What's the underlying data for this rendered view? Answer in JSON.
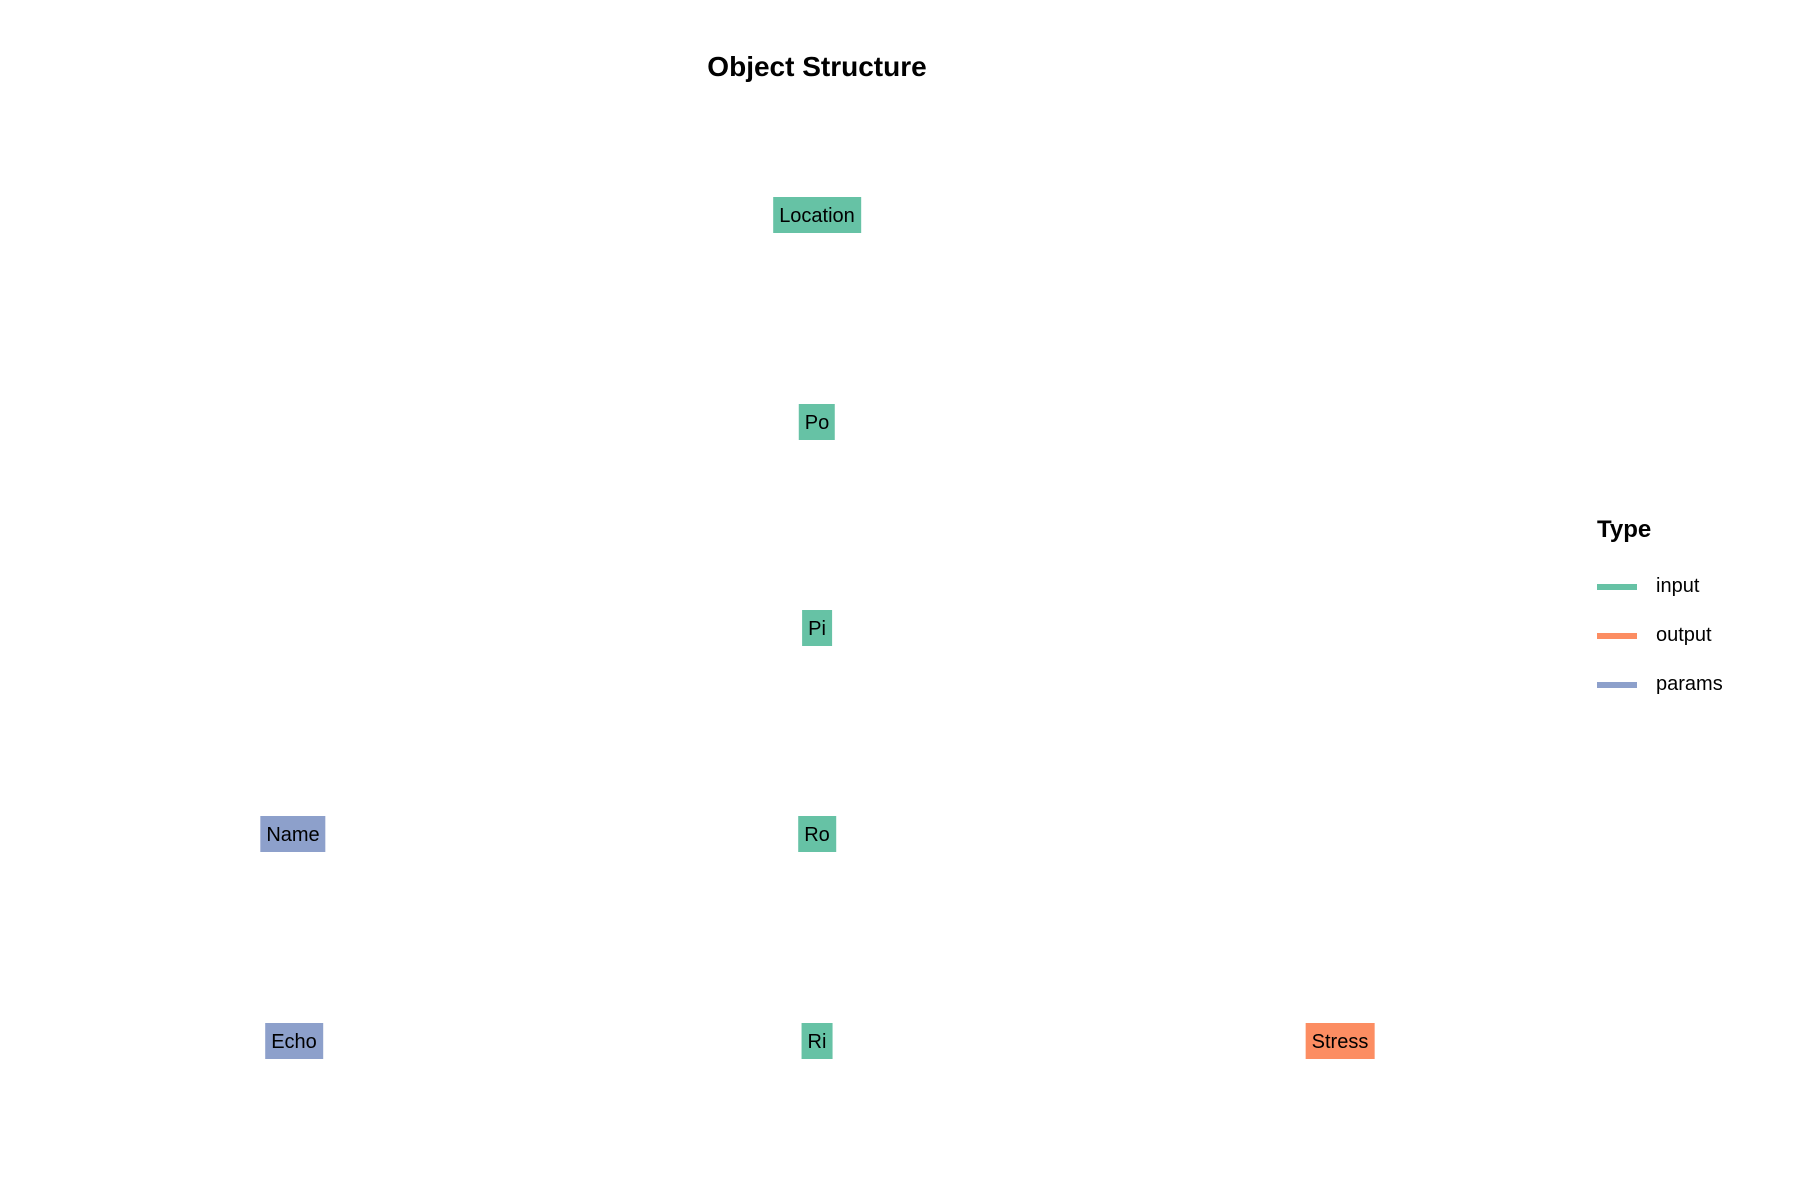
{
  "title": "Object Structure",
  "colors": {
    "input": "#66c2a5",
    "output": "#fc8d62",
    "params": "#8da0cb"
  },
  "nodes": [
    {
      "label": "Location",
      "type": "input"
    },
    {
      "label": "Po",
      "type": "input"
    },
    {
      "label": "Pi",
      "type": "input"
    },
    {
      "label": "Name",
      "type": "params"
    },
    {
      "label": "Ro",
      "type": "input"
    },
    {
      "label": "Echo",
      "type": "params"
    },
    {
      "label": "Ri",
      "type": "input"
    },
    {
      "label": "Stress",
      "type": "output"
    }
  ],
  "legend": {
    "title": "Type",
    "items": [
      {
        "label": "input",
        "type": "input"
      },
      {
        "label": "output",
        "type": "output"
      },
      {
        "label": "params",
        "type": "params"
      }
    ]
  }
}
